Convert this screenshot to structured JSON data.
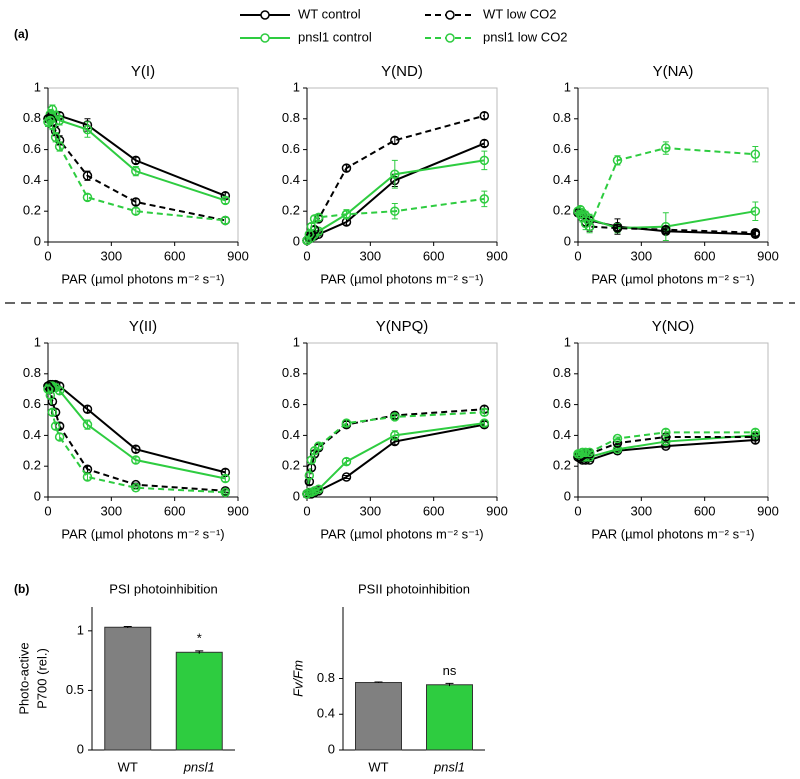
{
  "panel_labels": [
    "(a)",
    "(b)"
  ],
  "legend": [
    {
      "name": "WT control",
      "color": "#000000",
      "dashed": false
    },
    {
      "name": "pnsl1 control",
      "color": "#2ecc40",
      "dashed": false
    },
    {
      "name": "WT low CO2",
      "color": "#000000",
      "dashed": true
    },
    {
      "name": "pnsl1 low CO2",
      "color": "#2ecc40",
      "dashed": true
    }
  ],
  "chart_data": [
    {
      "type": "line",
      "title": "Y(I)",
      "xlabel": "PAR (µmol photons m⁻² s⁻¹)",
      "x": [
        0,
        11,
        21,
        36,
        55,
        187,
        416,
        840
      ],
      "xlim": [
        0,
        900
      ],
      "xticks": [
        0,
        300,
        600,
        900
      ],
      "ylim": [
        0,
        1
      ],
      "yticks": [
        0,
        0.2,
        0.4,
        0.6,
        0.8,
        1
      ],
      "series": [
        {
          "values": [
            0.8,
            0.81,
            0.82,
            0.82,
            0.82,
            0.76,
            0.53,
            0.3
          ],
          "errors": [
            0.02,
            0.02,
            0.02,
            0.02,
            0.02,
            0.04,
            0.02,
            0.02
          ]
        },
        {
          "values": [
            0.78,
            0.83,
            0.86,
            0.82,
            0.79,
            0.73,
            0.46,
            0.27
          ],
          "errors": [
            0.03,
            0.03,
            0.03,
            0.03,
            0.03,
            0.05,
            0.03,
            0.02
          ]
        },
        {
          "values": [
            0.8,
            0.8,
            0.78,
            0.72,
            0.66,
            0.43,
            0.26,
            0.14
          ],
          "errors": [
            0.02,
            0.02,
            0.02,
            0.03,
            0.03,
            0.03,
            0.02,
            0.02
          ]
        },
        {
          "values": [
            0.78,
            0.79,
            0.76,
            0.68,
            0.62,
            0.29,
            0.2,
            0.14
          ],
          "errors": [
            0.02,
            0.02,
            0.03,
            0.03,
            0.03,
            0.02,
            0.02,
            0.02
          ]
        }
      ]
    },
    {
      "type": "line",
      "title": "Y(ND)",
      "xlabel": "PAR (µmol photons m⁻² s⁻¹)",
      "x": [
        0,
        11,
        21,
        36,
        55,
        187,
        416,
        840
      ],
      "xlim": [
        0,
        900
      ],
      "xticks": [
        0,
        300,
        600,
        900
      ],
      "ylim": [
        0,
        1
      ],
      "yticks": [
        0,
        0.2,
        0.4,
        0.6,
        0.8,
        1
      ],
      "series": [
        {
          "values": [
            0.01,
            0.02,
            0.03,
            0.04,
            0.05,
            0.13,
            0.4,
            0.64
          ],
          "errors": [
            0.01,
            0.01,
            0.01,
            0.01,
            0.01,
            0.02,
            0.04,
            0.02
          ]
        },
        {
          "values": [
            0.01,
            0.02,
            0.03,
            0.05,
            0.07,
            0.18,
            0.44,
            0.53
          ],
          "errors": [
            0.01,
            0.01,
            0.01,
            0.01,
            0.02,
            0.03,
            0.09,
            0.06
          ]
        },
        {
          "values": [
            0.01,
            0.03,
            0.05,
            0.08,
            0.15,
            0.48,
            0.66,
            0.82
          ],
          "errors": [
            0.01,
            0.01,
            0.01,
            0.02,
            0.02,
            0.02,
            0.02,
            0.02
          ]
        },
        {
          "values": [
            0.01,
            0.05,
            0.1,
            0.15,
            0.16,
            0.18,
            0.2,
            0.28
          ],
          "errors": [
            0.01,
            0.02,
            0.02,
            0.02,
            0.02,
            0.02,
            0.05,
            0.05
          ]
        }
      ]
    },
    {
      "type": "line",
      "title": "Y(NA)",
      "xlabel": "PAR (µmol photons m⁻² s⁻¹)",
      "x": [
        0,
        11,
        21,
        36,
        55,
        187,
        416,
        840
      ],
      "xlim": [
        0,
        900
      ],
      "xticks": [
        0,
        300,
        600,
        900
      ],
      "ylim": [
        0,
        1
      ],
      "yticks": [
        0,
        0.2,
        0.4,
        0.6,
        0.8,
        1
      ],
      "series": [
        {
          "values": [
            0.19,
            0.19,
            0.18,
            0.17,
            0.14,
            0.1,
            0.07,
            0.05
          ],
          "errors": [
            0.02,
            0.02,
            0.02,
            0.02,
            0.02,
            0.05,
            0.02,
            0.02
          ]
        },
        {
          "values": [
            0.2,
            0.21,
            0.19,
            0.17,
            0.15,
            0.09,
            0.1,
            0.2
          ],
          "errors": [
            0.02,
            0.02,
            0.02,
            0.03,
            0.03,
            0.03,
            0.09,
            0.06
          ]
        },
        {
          "values": [
            0.19,
            0.18,
            0.16,
            0.13,
            0.1,
            0.09,
            0.08,
            0.06
          ],
          "errors": [
            0.02,
            0.02,
            0.02,
            0.03,
            0.03,
            0.02,
            0.02,
            0.02
          ]
        },
        {
          "values": [
            0.2,
            0.18,
            0.16,
            0.12,
            0.1,
            0.53,
            0.61,
            0.57
          ],
          "errors": [
            0.02,
            0.02,
            0.03,
            0.04,
            0.04,
            0.03,
            0.04,
            0.05
          ]
        }
      ]
    },
    {
      "type": "line",
      "title": "Y(II)",
      "xlabel": "PAR (µmol photons m⁻² s⁻¹)",
      "x": [
        0,
        11,
        21,
        36,
        55,
        187,
        416,
        840
      ],
      "xlim": [
        0,
        900
      ],
      "xticks": [
        0,
        300,
        600,
        900
      ],
      "ylim": [
        0,
        1
      ],
      "yticks": [
        0,
        0.2,
        0.4,
        0.6,
        0.8,
        1
      ],
      "series": [
        {
          "values": [
            0.72,
            0.73,
            0.73,
            0.73,
            0.72,
            0.57,
            0.31,
            0.16
          ],
          "errors": [
            0.02,
            0.02,
            0.02,
            0.02,
            0.02,
            0.02,
            0.02,
            0.02
          ]
        },
        {
          "values": [
            0.71,
            0.72,
            0.72,
            0.71,
            0.69,
            0.47,
            0.24,
            0.12
          ],
          "errors": [
            0.02,
            0.02,
            0.02,
            0.02,
            0.02,
            0.03,
            0.02,
            0.02
          ]
        },
        {
          "values": [
            0.72,
            0.7,
            0.62,
            0.55,
            0.46,
            0.18,
            0.08,
            0.04
          ],
          "errors": [
            0.02,
            0.02,
            0.02,
            0.02,
            0.02,
            0.02,
            0.01,
            0.01
          ]
        },
        {
          "values": [
            0.7,
            0.66,
            0.55,
            0.46,
            0.39,
            0.13,
            0.06,
            0.03
          ],
          "errors": [
            0.02,
            0.02,
            0.02,
            0.02,
            0.02,
            0.02,
            0.01,
            0.01
          ]
        }
      ]
    },
    {
      "type": "line",
      "title": "Y(NPQ)",
      "xlabel": "PAR (µmol photons m⁻² s⁻¹)",
      "x": [
        0,
        11,
        21,
        36,
        55,
        187,
        416,
        840
      ],
      "xlim": [
        0,
        900
      ],
      "xticks": [
        0,
        300,
        600,
        900
      ],
      "ylim": [
        0,
        1
      ],
      "yticks": [
        0,
        0.2,
        0.4,
        0.6,
        0.8,
        1
      ],
      "series": [
        {
          "values": [
            0.02,
            0.02,
            0.02,
            0.03,
            0.04,
            0.13,
            0.36,
            0.47
          ],
          "errors": [
            0.01,
            0.01,
            0.01,
            0.01,
            0.01,
            0.01,
            0.02,
            0.02
          ]
        },
        {
          "values": [
            0.02,
            0.03,
            0.03,
            0.04,
            0.05,
            0.23,
            0.4,
            0.48
          ],
          "errors": [
            0.01,
            0.01,
            0.01,
            0.01,
            0.01,
            0.02,
            0.03,
            0.02
          ]
        },
        {
          "values": [
            0.02,
            0.1,
            0.19,
            0.28,
            0.32,
            0.47,
            0.53,
            0.57
          ],
          "errors": [
            0.01,
            0.02,
            0.02,
            0.02,
            0.02,
            0.02,
            0.02,
            0.02
          ]
        },
        {
          "values": [
            0.02,
            0.14,
            0.24,
            0.3,
            0.33,
            0.48,
            0.52,
            0.55
          ],
          "errors": [
            0.01,
            0.02,
            0.02,
            0.02,
            0.02,
            0.02,
            0.02,
            0.02
          ]
        }
      ]
    },
    {
      "type": "line",
      "title": "Y(NO)",
      "xlabel": "PAR (µmol photons m⁻² s⁻¹)",
      "x": [
        0,
        11,
        21,
        36,
        55,
        187,
        416,
        840
      ],
      "xlim": [
        0,
        900
      ],
      "xticks": [
        0,
        300,
        600,
        900
      ],
      "ylim": [
        0,
        1
      ],
      "yticks": [
        0,
        0.2,
        0.4,
        0.6,
        0.8,
        1
      ],
      "series": [
        {
          "values": [
            0.26,
            0.25,
            0.24,
            0.24,
            0.24,
            0.3,
            0.33,
            0.37
          ],
          "errors": [
            0.01,
            0.01,
            0.01,
            0.01,
            0.01,
            0.01,
            0.01,
            0.02
          ]
        },
        {
          "values": [
            0.27,
            0.26,
            0.26,
            0.26,
            0.26,
            0.31,
            0.36,
            0.4
          ],
          "errors": [
            0.01,
            0.01,
            0.01,
            0.01,
            0.01,
            0.01,
            0.02,
            0.02
          ]
        },
        {
          "values": [
            0.26,
            0.26,
            0.27,
            0.28,
            0.28,
            0.35,
            0.39,
            0.39
          ],
          "errors": [
            0.01,
            0.01,
            0.01,
            0.01,
            0.01,
            0.01,
            0.02,
            0.02
          ]
        },
        {
          "values": [
            0.28,
            0.28,
            0.29,
            0.29,
            0.29,
            0.38,
            0.42,
            0.42
          ],
          "errors": [
            0.01,
            0.01,
            0.01,
            0.01,
            0.01,
            0.01,
            0.02,
            0.02
          ]
        }
      ]
    },
    {
      "type": "bar",
      "title": "PSI photoinhibition",
      "ylabel": [
        "Photo-active",
        "P700 (rel.)"
      ],
      "categories": [
        "WT",
        "pnsl1"
      ],
      "values": [
        1.03,
        0.82
      ],
      "errors": [
        0.006,
        0.012
      ],
      "colors": [
        "#808080",
        "#2ecc40"
      ],
      "annotation": "*",
      "ylim": [
        0,
        1.2
      ],
      "yticks": [
        0,
        0.5,
        1
      ]
    },
    {
      "type": "bar",
      "title": "PSII photoinhibition",
      "ylabel": [
        "Fv/Fm"
      ],
      "categories": [
        "WT",
        "pnsl1"
      ],
      "values": [
        0.755,
        0.73
      ],
      "errors": [
        0.006,
        0.015
      ],
      "colors": [
        "#808080",
        "#2ecc40"
      ],
      "annotation": "ns",
      "ylim": [
        0,
        1.6
      ],
      "yticks": [
        0,
        0.4,
        0.8
      ]
    }
  ]
}
